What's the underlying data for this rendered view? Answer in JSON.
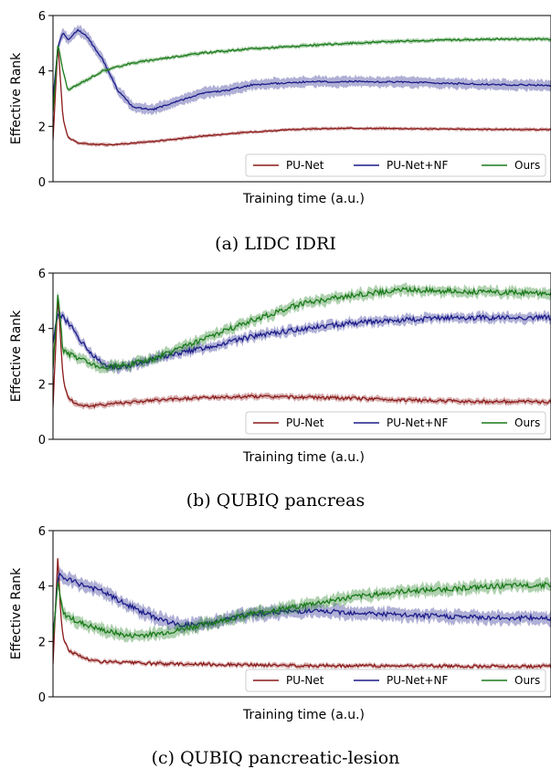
{
  "chart_data": [
    {
      "type": "line",
      "caption": "(a) LIDC IDRI",
      "xlabel": "Training time (a.u.)",
      "ylabel": "Effective Rank",
      "ylim": [
        0,
        6
      ],
      "xlim": [
        0,
        1
      ],
      "yticks": [
        "0",
        "2",
        "4",
        "6"
      ],
      "grid": false,
      "legend_position": "bottom-right",
      "series": [
        {
          "name": "PU-Net",
          "color": "#8b1a1a",
          "band": 0.06,
          "x": [
            0,
            0.01,
            0.02,
            0.03,
            0.05,
            0.08,
            0.12,
            0.2,
            0.3,
            0.4,
            0.5,
            0.6,
            0.7,
            0.8,
            0.9,
            1.0
          ],
          "y": [
            1.5,
            5.0,
            2.3,
            1.6,
            1.4,
            1.35,
            1.34,
            1.45,
            1.65,
            1.8,
            1.9,
            1.93,
            1.92,
            1.9,
            1.89,
            1.88
          ]
        },
        {
          "name": "PU-Net+NF",
          "color": "#1c1c8a",
          "band": 0.18,
          "x": [
            0,
            0.01,
            0.02,
            0.03,
            0.05,
            0.07,
            0.1,
            0.13,
            0.16,
            0.2,
            0.25,
            0.3,
            0.35,
            0.4,
            0.5,
            0.6,
            0.7,
            0.8,
            0.9,
            1.0
          ],
          "y": [
            3.0,
            4.9,
            5.4,
            5.1,
            5.5,
            5.2,
            4.4,
            3.3,
            2.7,
            2.6,
            2.9,
            3.2,
            3.3,
            3.5,
            3.6,
            3.62,
            3.6,
            3.55,
            3.5,
            3.48
          ]
        },
        {
          "name": "Ours",
          "color": "#1a7a1a",
          "band": 0.07,
          "x": [
            0,
            0.01,
            0.02,
            0.03,
            0.06,
            0.1,
            0.15,
            0.2,
            0.3,
            0.4,
            0.5,
            0.6,
            0.7,
            0.8,
            0.9,
            1.0
          ],
          "y": [
            2.5,
            5.0,
            4.0,
            3.3,
            3.6,
            4.0,
            4.25,
            4.4,
            4.65,
            4.8,
            4.9,
            5.0,
            5.08,
            5.12,
            5.15,
            5.15
          ]
        }
      ]
    },
    {
      "type": "line",
      "caption": "(b) QUBIQ pancreas",
      "xlabel": "Training time (a.u.)",
      "ylabel": "Effective Rank",
      "ylim": [
        0,
        6
      ],
      "xlim": [
        0,
        1
      ],
      "yticks": [
        "0",
        "2",
        "4",
        "6"
      ],
      "grid": false,
      "legend_position": "bottom-right",
      "series": [
        {
          "name": "PU-Net",
          "color": "#8b1a1a",
          "band": 0.1,
          "x": [
            0,
            0.01,
            0.02,
            0.03,
            0.05,
            0.08,
            0.12,
            0.2,
            0.3,
            0.4,
            0.5,
            0.6,
            0.7,
            0.8,
            0.9,
            1.0
          ],
          "y": [
            1.2,
            5.2,
            2.2,
            1.5,
            1.25,
            1.2,
            1.3,
            1.4,
            1.5,
            1.55,
            1.52,
            1.48,
            1.42,
            1.38,
            1.36,
            1.35
          ]
        },
        {
          "name": "PU-Net+NF",
          "color": "#1c1c8a",
          "band": 0.16,
          "x": [
            0,
            0.01,
            0.02,
            0.04,
            0.07,
            0.1,
            0.13,
            0.16,
            0.2,
            0.3,
            0.4,
            0.5,
            0.6,
            0.7,
            0.8,
            0.9,
            1.0
          ],
          "y": [
            3.5,
            4.6,
            4.4,
            4.0,
            3.2,
            2.7,
            2.6,
            2.7,
            2.9,
            3.3,
            3.7,
            4.0,
            4.2,
            4.3,
            4.38,
            4.4,
            4.4
          ]
        },
        {
          "name": "Ours",
          "color": "#1a7a1a",
          "band": 0.17,
          "x": [
            0,
            0.01,
            0.02,
            0.04,
            0.07,
            0.1,
            0.15,
            0.2,
            0.3,
            0.4,
            0.5,
            0.6,
            0.7,
            0.8,
            0.9,
            1.0
          ],
          "y": [
            2.5,
            5.3,
            3.2,
            3.0,
            2.8,
            2.6,
            2.7,
            2.9,
            3.6,
            4.3,
            4.9,
            5.2,
            5.4,
            5.35,
            5.3,
            5.28
          ]
        }
      ]
    },
    {
      "type": "line",
      "caption": "(c) QUBIQ pancreatic-lesion",
      "xlabel": "Training time (a.u.)",
      "ylabel": "Effective Rank",
      "ylim": [
        0,
        6
      ],
      "xlim": [
        0,
        1
      ],
      "yticks": [
        "0",
        "2",
        "4",
        "6"
      ],
      "grid": false,
      "legend_position": "bottom-right",
      "series": [
        {
          "name": "PU-Net",
          "color": "#8b1a1a",
          "band": 0.08,
          "x": [
            0,
            0.01,
            0.015,
            0.02,
            0.03,
            0.05,
            0.08,
            0.12,
            0.2,
            0.3,
            0.4,
            0.5,
            0.6,
            0.7,
            0.8,
            0.9,
            1.0
          ],
          "y": [
            1.2,
            5.2,
            3.0,
            2.2,
            1.7,
            1.5,
            1.3,
            1.25,
            1.2,
            1.18,
            1.15,
            1.13,
            1.12,
            1.12,
            1.11,
            1.1,
            1.1
          ]
        },
        {
          "name": "PU-Net+NF",
          "color": "#1c1c8a",
          "band": 0.22,
          "x": [
            0,
            0.01,
            0.02,
            0.05,
            0.1,
            0.15,
            0.2,
            0.25,
            0.3,
            0.35,
            0.4,
            0.5,
            0.6,
            0.7,
            0.8,
            0.9,
            1.0
          ],
          "y": [
            2.0,
            4.4,
            4.3,
            4.1,
            3.8,
            3.3,
            2.9,
            2.6,
            2.6,
            2.8,
            3.0,
            3.1,
            3.05,
            2.95,
            2.9,
            2.85,
            2.85
          ]
        },
        {
          "name": "Ours",
          "color": "#1a7a1a",
          "band": 0.2,
          "x": [
            0,
            0.01,
            0.02,
            0.05,
            0.1,
            0.15,
            0.2,
            0.25,
            0.3,
            0.4,
            0.5,
            0.6,
            0.7,
            0.8,
            0.9,
            1.0
          ],
          "y": [
            2.0,
            4.2,
            3.0,
            2.7,
            2.4,
            2.2,
            2.25,
            2.4,
            2.6,
            3.0,
            3.3,
            3.6,
            3.8,
            3.9,
            4.0,
            4.05
          ]
        }
      ]
    }
  ]
}
